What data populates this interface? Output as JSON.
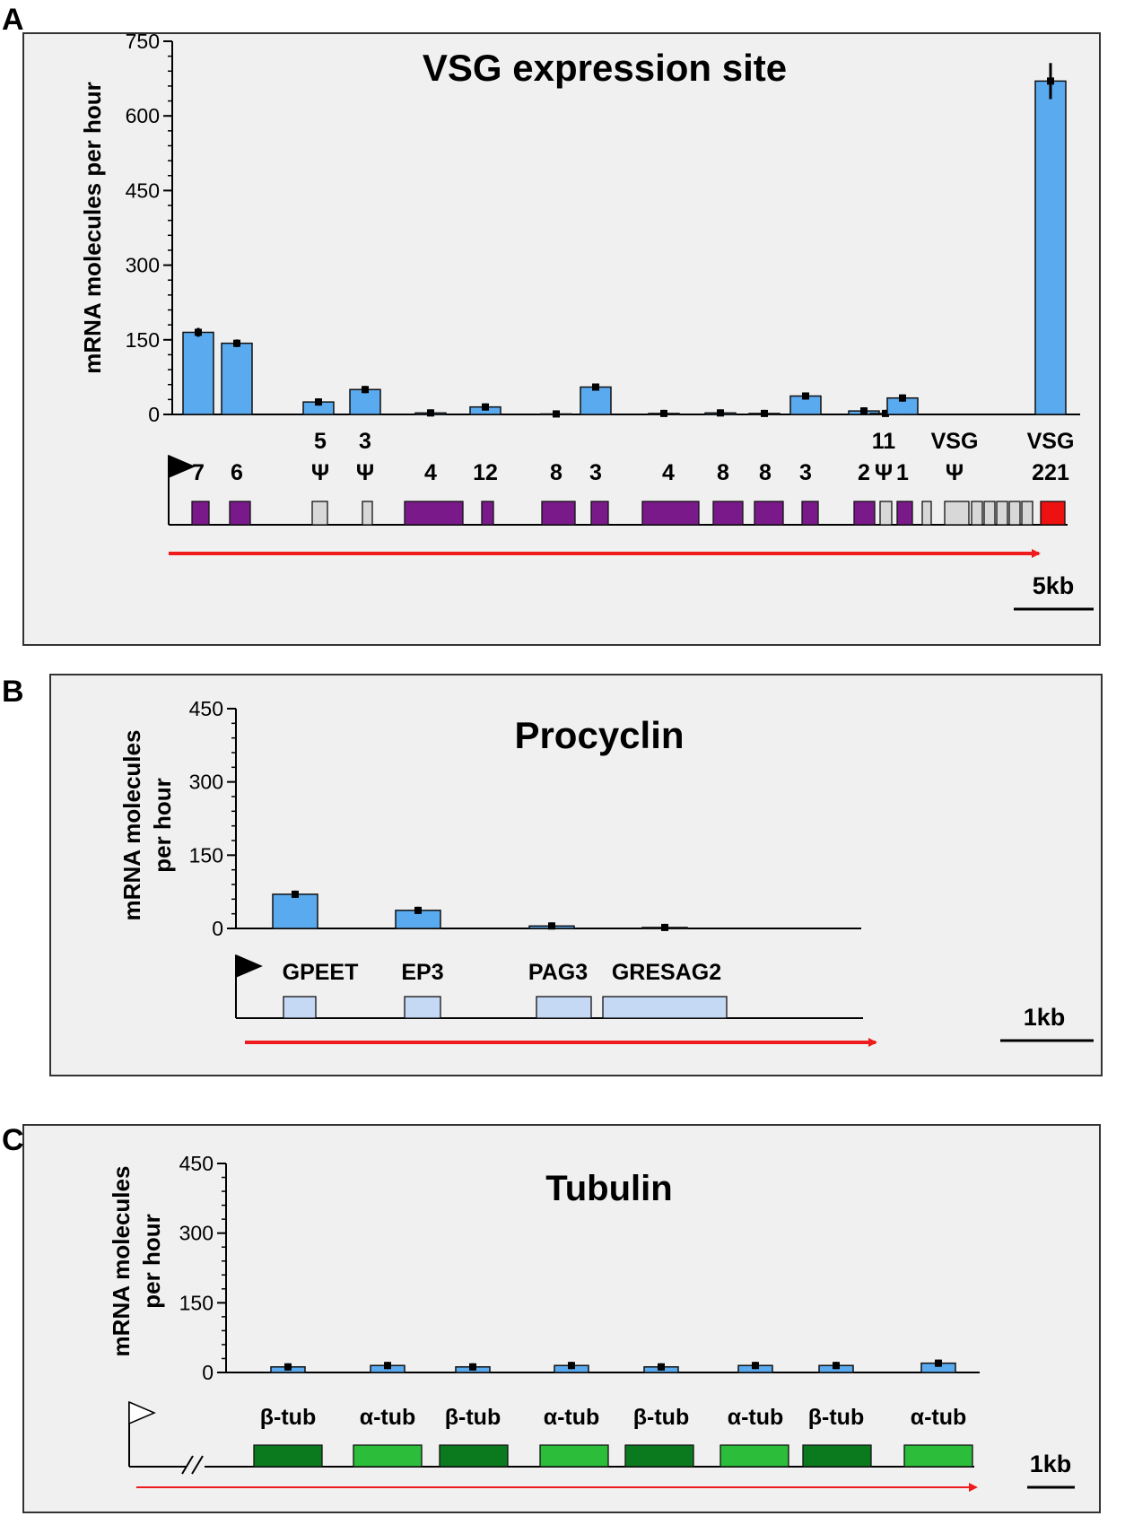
{
  "figure": {
    "panels": [
      {
        "label": "A",
        "title": "VSG expression site",
        "ylabel_lines": [
          "mRNA molecules per hour"
        ],
        "scale_label": "5kb",
        "gene_labels": [
          {
            "lines": [
              "7"
            ]
          },
          {
            "lines": [
              "6"
            ]
          },
          {
            "lines": [
              "5",
              "Ψ"
            ]
          },
          {
            "lines": [
              "3",
              "Ψ"
            ]
          },
          {
            "lines": [
              "4"
            ]
          },
          {
            "lines": [
              "12"
            ]
          },
          {
            "lines": [
              "8"
            ]
          },
          {
            "lines": [
              "3"
            ]
          },
          {
            "lines": [
              "4"
            ]
          },
          {
            "lines": [
              "8"
            ]
          },
          {
            "lines": [
              "8"
            ]
          },
          {
            "lines": [
              "3"
            ]
          },
          {
            "lines": [
              "2"
            ]
          },
          {
            "lines": [
              "11",
              "Ψ"
            ]
          },
          {
            "lines": [
              "1"
            ]
          },
          {
            "lines": [
              "VSG",
              "Ψ"
            ]
          },
          {
            "lines": [
              "VSG",
              "221"
            ]
          }
        ]
      },
      {
        "label": "B",
        "title": "Procyclin",
        "ylabel_lines": [
          "mRNA molecules",
          "per hour"
        ],
        "scale_label": "1kb",
        "gene_labels": [
          {
            "lines": [
              "GPEET"
            ]
          },
          {
            "lines": [
              "EP3"
            ]
          },
          {
            "lines": [
              "PAG3"
            ]
          },
          {
            "lines": [
              "GRESAG2"
            ]
          }
        ]
      },
      {
        "label": "C",
        "title": "Tubulin",
        "ylabel_lines": [
          "mRNA molecules",
          "per hour"
        ],
        "scale_label": "1kb",
        "gene_labels": [
          {
            "lines": [
              "β-tub"
            ]
          },
          {
            "lines": [
              "α-tub"
            ]
          },
          {
            "lines": [
              "β-tub"
            ]
          },
          {
            "lines": [
              "α-tub"
            ]
          },
          {
            "lines": [
              "β-tub"
            ]
          },
          {
            "lines": [
              "α-tub"
            ]
          },
          {
            "lines": [
              "β-tub"
            ]
          },
          {
            "lines": [
              "α-tub"
            ]
          }
        ]
      }
    ]
  },
  "colors": {
    "bar": "#5aaaf0",
    "pag_gene": "#7a1a8a",
    "pseudo_gene": "#d8d8d8",
    "vsg_gene": "#ee1111",
    "procyclin_gene": "#c5d8f4",
    "beta_tub": "#0b7a1e",
    "alpha_tub": "#2cbd3a",
    "arrow": "#ee1c1c",
    "panel_bg": "#f0f0f0"
  },
  "chart_data": [
    {
      "type": "bar",
      "title": "VSG expression site",
      "ylabel": "mRNA molecules per hour",
      "ylim": [
        0,
        750
      ],
      "yticks": [
        0,
        150,
        300,
        450,
        600,
        750
      ],
      "series": [
        {
          "values": [
            165,
            143,
            25,
            50,
            3,
            15,
            1,
            55,
            2,
            3,
            2,
            37,
            7,
            2,
            33,
            0,
            670
          ]
        }
      ]
    },
    {
      "type": "bar",
      "title": "Procyclin",
      "ylabel": "mRNA molecules per hour",
      "ylim": [
        0,
        450
      ],
      "yticks": [
        0,
        150,
        300,
        450
      ],
      "series": [
        {
          "values": [
            70,
            37,
            5,
            2
          ]
        }
      ]
    },
    {
      "type": "bar",
      "title": "Tubulin",
      "ylabel": "mRNA molecules per hour",
      "ylim": [
        0,
        450
      ],
      "yticks": [
        0,
        150,
        300,
        450
      ],
      "series": [
        {
          "values": [
            12,
            15,
            12,
            15,
            12,
            15,
            15,
            20
          ]
        }
      ]
    }
  ]
}
